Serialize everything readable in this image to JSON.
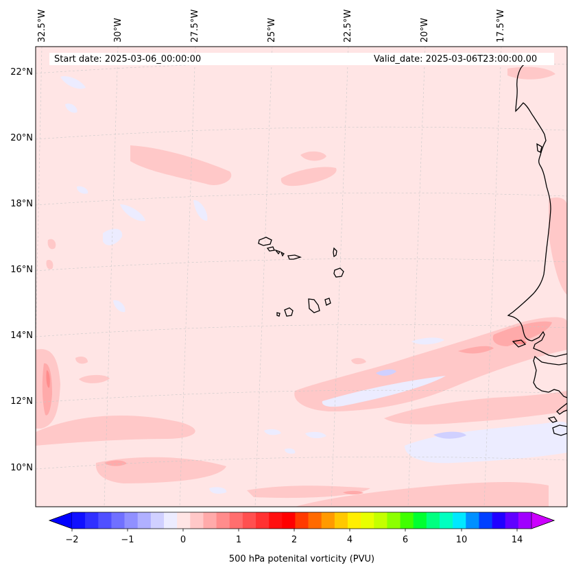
{
  "map": {
    "start_label": "Start date: 2025-03-06_00:00:00",
    "valid_label": "Valid_date: 2025-03-06T23:00:00.00",
    "lon_labels": [
      "32.5°W",
      "30°W",
      "27.5°W",
      "25°W",
      "22.5°W",
      "20°W",
      "17.5°W"
    ],
    "lat_labels": [
      "22°N",
      "20°N",
      "18°N",
      "16°N",
      "14°N",
      "12°N",
      "10°N"
    ],
    "background_color": "#ffe5e5",
    "coastline_color": "#000000",
    "gridline_color": "#c8c8c8"
  },
  "colorbar": {
    "title": "500 hPa potenital vorticity (PVU)",
    "tick_labels": [
      "−2",
      "−1",
      "0",
      "1",
      "2",
      "4",
      "6",
      "10",
      "14"
    ],
    "colors": [
      "#1010ff",
      "#3030ff",
      "#5050ff",
      "#7070ff",
      "#9090ff",
      "#b0b0ff",
      "#d0d0ff",
      "#ececff",
      "#ffe5e5",
      "#ffc8c8",
      "#ffaaaa",
      "#ff8c8c",
      "#ff6e6e",
      "#ff5050",
      "#ff3232",
      "#ff1010",
      "#ff0000",
      "#ff3a00",
      "#ff6a00",
      "#ff9a00",
      "#ffc800",
      "#ffee00",
      "#e8ff00",
      "#c4ff00",
      "#8cff00",
      "#40ff00",
      "#00ff30",
      "#00ff80",
      "#00ffc0",
      "#00e8ff",
      "#0090ff",
      "#0040ff",
      "#2000ff",
      "#6000ff",
      "#a000ff"
    ],
    "under_color": "#0000ff",
    "over_color": "#cc00ff"
  }
}
